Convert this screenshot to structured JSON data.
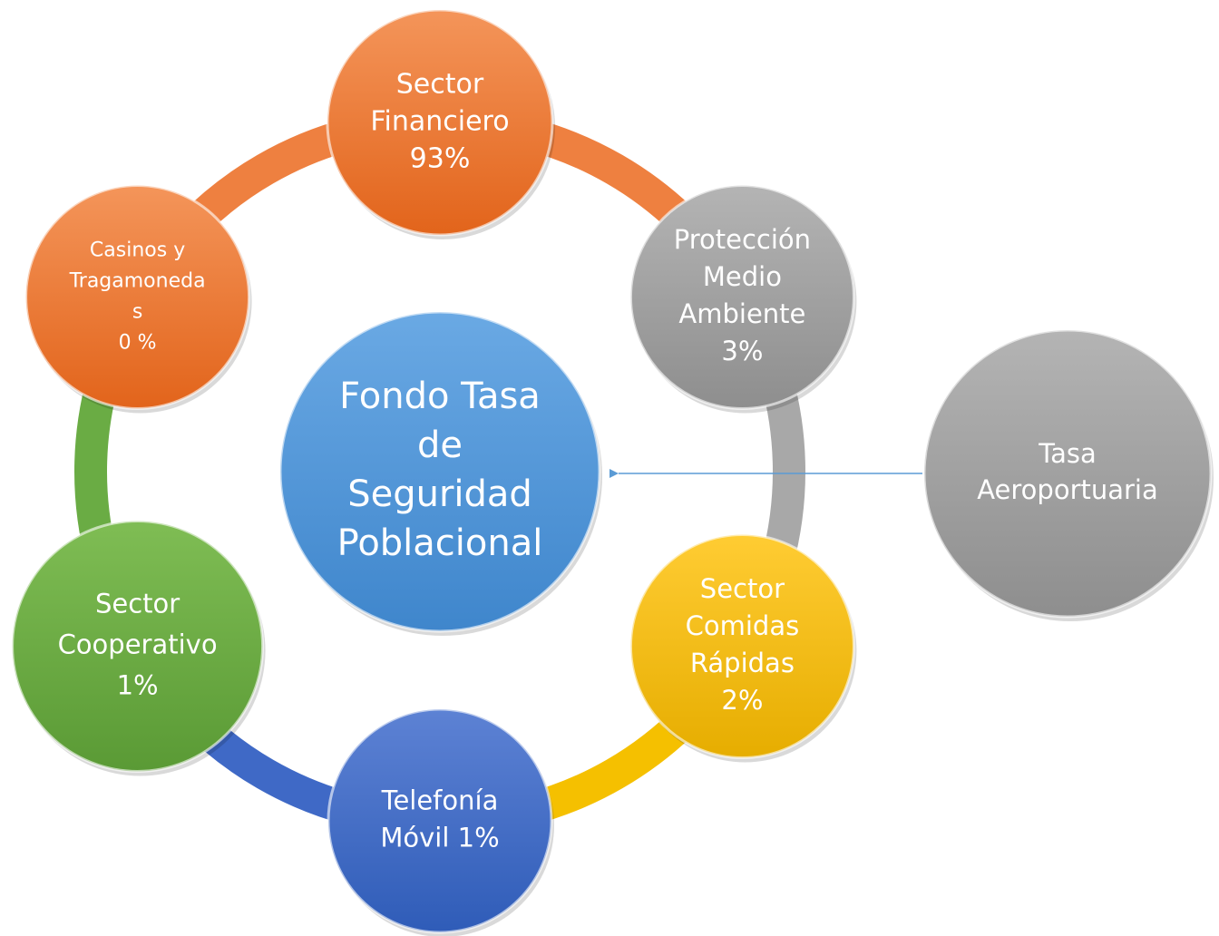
{
  "center": {
    "lines": [
      "Fondo Tasa",
      "de",
      "Seguridad",
      "Poblacional"
    ]
  },
  "nodes": [
    {
      "lines": [
        "Sector",
        "Financiero",
        "93%"
      ]
    },
    {
      "lines": [
        "Protección",
        "Medio",
        "Ambiente",
        "3%"
      ]
    },
    {
      "lines": [
        "Sector",
        "Comidas",
        "Rápidas",
        "2%"
      ]
    },
    {
      "lines": [
        "Telefonía",
        "Móvil 1%"
      ]
    },
    {
      "lines": [
        "Sector",
        "Cooperativo",
        "1%"
      ]
    },
    {
      "lines": [
        "Casinos y",
        "Tragamoneda",
        "s",
        "0 %"
      ]
    }
  ],
  "external": {
    "lines": [
      "Tasa",
      "Aeroportuaria"
    ]
  }
}
